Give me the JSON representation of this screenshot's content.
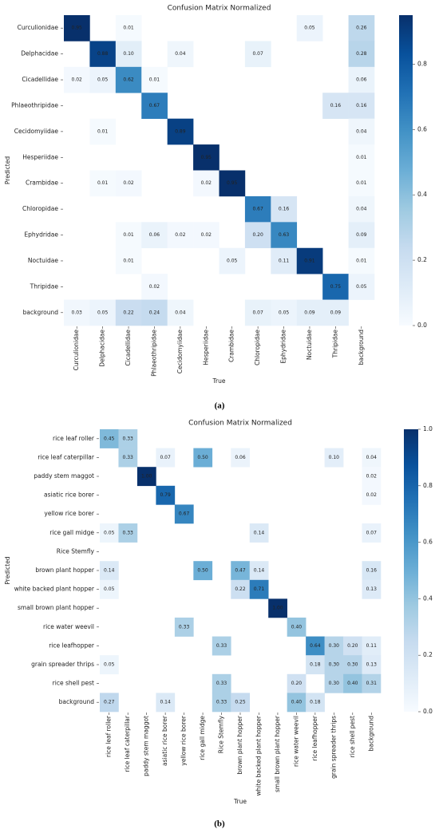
{
  "chart_data": [
    {
      "type": "heatmap",
      "title": "Confusion Matrix Normalized",
      "x_label": "True",
      "y_label": "Predicted",
      "caption": "(a)",
      "x_categories": [
        "Curculionidae",
        "Delphacidae",
        "Cicadellidae",
        "Phlaeothripidae",
        "Cecidomyiidae",
        "Hesperiidae",
        "Crambidae",
        "Chloropidae",
        "Ephydridae",
        "Noctuidae",
        "Thripidae",
        "background"
      ],
      "y_categories": [
        "Curculionidae",
        "Delphacidae",
        "Cicadellidae",
        "Phlaeothripidae",
        "Cecidomyiidae",
        "Hesperiidae",
        "Crambidae",
        "Chloropidae",
        "Ephydridae",
        "Noctuidae",
        "Thripidae",
        "background"
      ],
      "values": [
        [
          0.95,
          null,
          0.01,
          null,
          null,
          null,
          null,
          null,
          null,
          0.05,
          null,
          0.26
        ],
        [
          null,
          0.88,
          0.1,
          null,
          0.04,
          null,
          null,
          0.07,
          null,
          null,
          null,
          0.28
        ],
        [
          0.02,
          0.05,
          0.62,
          0.01,
          null,
          null,
          null,
          null,
          null,
          null,
          null,
          0.06
        ],
        [
          null,
          null,
          null,
          0.67,
          null,
          null,
          null,
          null,
          null,
          null,
          0.16,
          0.16
        ],
        [
          null,
          0.01,
          null,
          null,
          0.89,
          null,
          null,
          null,
          null,
          null,
          null,
          0.04
        ],
        [
          null,
          null,
          null,
          null,
          null,
          0.95,
          null,
          null,
          null,
          null,
          null,
          0.01
        ],
        [
          null,
          0.01,
          0.02,
          null,
          null,
          0.02,
          0.95,
          null,
          null,
          null,
          null,
          0.01
        ],
        [
          null,
          null,
          null,
          null,
          null,
          null,
          null,
          0.67,
          0.16,
          null,
          null,
          0.04
        ],
        [
          null,
          null,
          0.01,
          0.06,
          0.02,
          0.02,
          null,
          0.2,
          0.63,
          null,
          null,
          0.09
        ],
        [
          null,
          null,
          0.01,
          null,
          null,
          null,
          0.05,
          null,
          0.11,
          0.91,
          null,
          0.01
        ],
        [
          null,
          null,
          null,
          0.02,
          null,
          null,
          null,
          null,
          null,
          null,
          0.75,
          0.05
        ],
        [
          0.03,
          0.05,
          0.22,
          0.24,
          0.04,
          null,
          null,
          0.07,
          0.05,
          0.09,
          0.09,
          null
        ]
      ],
      "value_labels": [
        [
          "0.95",
          null,
          "0.01",
          null,
          null,
          null,
          null,
          null,
          null,
          "0.05",
          null,
          "0.26"
        ],
        [
          null,
          "0.88",
          "0.10",
          null,
          "0.04",
          null,
          null,
          "0.07",
          null,
          null,
          null,
          "0.28"
        ],
        [
          "0.02",
          "0.05",
          "0.62",
          "0.01",
          null,
          null,
          null,
          null,
          null,
          null,
          null,
          "0.06"
        ],
        [
          null,
          null,
          null,
          "0.67",
          null,
          null,
          null,
          null,
          null,
          null,
          "0.16",
          "0.16"
        ],
        [
          null,
          "0.01",
          null,
          null,
          "0.89",
          null,
          null,
          null,
          null,
          null,
          null,
          "0.04"
        ],
        [
          null,
          null,
          null,
          null,
          null,
          "0.95",
          null,
          null,
          null,
          null,
          null,
          "0.01"
        ],
        [
          null,
          "0.01",
          "0.02",
          null,
          null,
          "0.02",
          "0.95",
          null,
          null,
          null,
          null,
          "0.01"
        ],
        [
          null,
          null,
          null,
          null,
          null,
          null,
          null,
          "0.67",
          "0.16",
          null,
          null,
          "0.04"
        ],
        [
          null,
          null,
          "0.01",
          "0.06",
          "0.02",
          "0.02",
          null,
          "0.20",
          "0.63",
          null,
          null,
          "0.09"
        ],
        [
          null,
          null,
          "0.01",
          null,
          null,
          null,
          "0.05",
          null,
          "0.11",
          "0.91",
          null,
          "0.01"
        ],
        [
          null,
          null,
          null,
          "0.02",
          null,
          null,
          null,
          null,
          null,
          null,
          "0.75",
          "0.05"
        ],
        [
          "0.03",
          "0.05",
          "0.22",
          "0.24",
          "0.04",
          null,
          null,
          "0.07",
          "0.05",
          "0.09",
          "0.09",
          null
        ]
      ],
      "colormap": "Blues",
      "vlim": [
        0,
        0.95
      ],
      "colorbar_ticks": [
        {
          "value": 0,
          "label": "0.0"
        },
        0.2,
        0.4,
        0.6,
        0.8
      ]
    },
    {
      "type": "heatmap",
      "title": "Confusion Matrix Normalized",
      "x_label": "True",
      "y_label": "Predicted",
      "caption": "(b)",
      "x_categories": [
        "rice leaf roller",
        "rice leaf caterpillar",
        "paddy stem maggot",
        "asiatic rice borer",
        "yellow rice borer",
        "rice gall midge",
        "Rice Stemfly",
        "brown plant hopper",
        "white backed plant hopper",
        "small brown plant hopper",
        "rice water weevil",
        "rice leafhopper",
        "grain spreader thrips",
        "rice shell pest",
        "background"
      ],
      "y_categories": [
        "rice leaf roller",
        "rice leaf caterpillar",
        "paddy stem maggot",
        "asiatic rice borer",
        "yellow rice borer",
        "rice gall midge",
        "Rice Stemfly",
        "brown plant hopper",
        "white backed plant hopper",
        "small brown plant hopper",
        "rice water weevil",
        "rice leafhopper",
        "grain spreader thrips",
        "rice shell pest",
        "background"
      ],
      "values": [
        [
          0.45,
          0.33,
          null,
          null,
          null,
          null,
          null,
          null,
          null,
          null,
          null,
          null,
          null,
          null,
          null
        ],
        [
          null,
          0.33,
          null,
          0.07,
          null,
          0.5,
          null,
          0.06,
          null,
          null,
          null,
          null,
          0.1,
          null,
          0.04
        ],
        [
          null,
          null,
          1,
          null,
          null,
          null,
          null,
          null,
          null,
          null,
          null,
          null,
          null,
          null,
          0.02
        ],
        [
          null,
          null,
          null,
          0.79,
          null,
          null,
          null,
          null,
          null,
          null,
          null,
          null,
          null,
          null,
          0.02
        ],
        [
          null,
          null,
          null,
          null,
          0.67,
          null,
          null,
          null,
          null,
          null,
          null,
          null,
          null,
          null,
          null
        ],
        [
          0.05,
          0.33,
          null,
          null,
          null,
          null,
          null,
          null,
          0.14,
          null,
          null,
          null,
          null,
          null,
          0.07
        ],
        [
          null,
          null,
          null,
          null,
          null,
          null,
          null,
          null,
          null,
          null,
          null,
          null,
          null,
          null,
          null
        ],
        [
          0.14,
          null,
          null,
          null,
          null,
          0.5,
          null,
          0.47,
          0.14,
          null,
          null,
          null,
          null,
          null,
          0.16
        ],
        [
          0.05,
          null,
          null,
          null,
          null,
          null,
          null,
          0.22,
          0.71,
          null,
          null,
          null,
          null,
          null,
          0.13
        ],
        [
          null,
          null,
          null,
          null,
          null,
          null,
          null,
          null,
          null,
          1,
          null,
          null,
          null,
          null,
          null
        ],
        [
          null,
          null,
          null,
          null,
          0.33,
          null,
          null,
          null,
          null,
          null,
          0.4,
          null,
          null,
          null,
          null
        ],
        [
          null,
          null,
          null,
          null,
          null,
          null,
          0.33,
          null,
          null,
          null,
          null,
          0.64,
          0.3,
          0.2,
          0.11
        ],
        [
          0.05,
          null,
          null,
          null,
          null,
          null,
          null,
          null,
          null,
          null,
          null,
          0.18,
          0.3,
          0.3,
          0.13
        ],
        [
          null,
          null,
          null,
          null,
          null,
          null,
          0.33,
          null,
          null,
          null,
          0.2,
          null,
          0.3,
          0.4,
          0.31
        ],
        [
          0.27,
          null,
          null,
          0.14,
          null,
          null,
          0.33,
          0.25,
          null,
          null,
          0.4,
          0.18,
          null,
          null,
          null
        ]
      ],
      "value_labels": [
        [
          "0.45",
          "0.33",
          null,
          null,
          null,
          null,
          null,
          null,
          null,
          null,
          null,
          null,
          null,
          null,
          null
        ],
        [
          null,
          "0.33",
          null,
          "0.07",
          null,
          "0.50",
          null,
          "0.06",
          null,
          null,
          null,
          null,
          "0.10",
          null,
          "0.04"
        ],
        [
          null,
          null,
          "1.00",
          null,
          null,
          null,
          null,
          null,
          null,
          null,
          null,
          null,
          null,
          null,
          "0.02"
        ],
        [
          null,
          null,
          null,
          "0.79",
          null,
          null,
          null,
          null,
          null,
          null,
          null,
          null,
          null,
          null,
          "0.02"
        ],
        [
          null,
          null,
          null,
          null,
          "0.67",
          null,
          null,
          null,
          null,
          null,
          null,
          null,
          null,
          null,
          null
        ],
        [
          "0.05",
          "0.33",
          null,
          null,
          null,
          null,
          null,
          null,
          "0.14",
          null,
          null,
          null,
          null,
          null,
          "0.07"
        ],
        [
          null,
          null,
          null,
          null,
          null,
          null,
          null,
          null,
          null,
          null,
          null,
          null,
          null,
          null,
          null
        ],
        [
          "0.14",
          null,
          null,
          null,
          null,
          "0.50",
          null,
          "0.47",
          "0.14",
          null,
          null,
          null,
          null,
          null,
          "0.16"
        ],
        [
          "0.05",
          null,
          null,
          null,
          null,
          null,
          null,
          "0.22",
          "0.71",
          null,
          null,
          null,
          null,
          null,
          "0.13"
        ],
        [
          null,
          null,
          null,
          null,
          null,
          null,
          null,
          null,
          null,
          "1.00",
          null,
          null,
          null,
          null,
          null
        ],
        [
          null,
          null,
          null,
          null,
          "0.33",
          null,
          null,
          null,
          null,
          null,
          "0.40",
          null,
          null,
          null,
          null
        ],
        [
          null,
          null,
          null,
          null,
          null,
          null,
          "0.33",
          null,
          null,
          null,
          null,
          "0.64",
          "0.30",
          "0.20",
          "0.11"
        ],
        [
          "0.05",
          null,
          null,
          null,
          null,
          null,
          null,
          null,
          null,
          null,
          null,
          "0.18",
          "0.30",
          "0.30",
          "0.13"
        ],
        [
          null,
          null,
          null,
          null,
          null,
          null,
          "0.33",
          null,
          null,
          null,
          "0.20",
          null,
          "0.30",
          "0.40",
          "0.31"
        ],
        [
          "0.27",
          null,
          null,
          "0.14",
          null,
          null,
          "0.33",
          "0.25",
          null,
          null,
          "0.40",
          "0.18",
          null,
          null,
          null
        ]
      ],
      "colormap": "Blues",
      "vlim": [
        0,
        1
      ],
      "colorbar_ticks": [
        {
          "value": 0,
          "label": "0.0"
        },
        {
          "value": 0.2,
          "label": "0.2"
        },
        {
          "value": 0.4,
          "label": "0.4"
        },
        {
          "value": 0.6,
          "label": "0.6"
        },
        {
          "value": 0.8,
          "label": "0.8"
        },
        {
          "value": 1,
          "label": "1.0"
        }
      ]
    }
  ]
}
